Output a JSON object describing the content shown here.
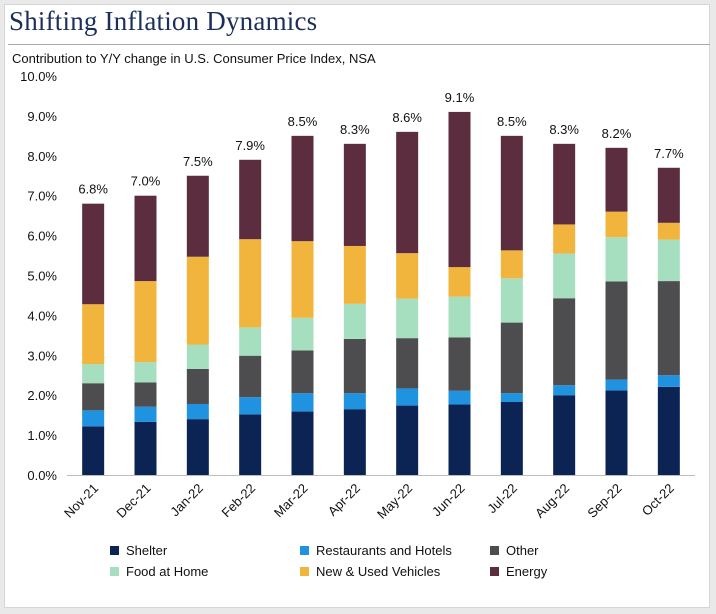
{
  "header": {
    "title": "Shifting Inflation Dynamics",
    "subtitle": "Contribution to Y/Y change in U.S. Consumer Price Index, NSA"
  },
  "chart_data": {
    "type": "bar",
    "stacked": true,
    "title": "Shifting Inflation Dynamics",
    "subtitle": "Contribution to Y/Y change in U.S. Consumer Price Index, NSA",
    "xlabel": "",
    "ylabel": "",
    "ylim": [
      0,
      10
    ],
    "yticks": [
      "0.0%",
      "1.0%",
      "2.0%",
      "3.0%",
      "4.0%",
      "5.0%",
      "6.0%",
      "7.0%",
      "8.0%",
      "9.0%",
      "10.0%"
    ],
    "grid": false,
    "legend_position": "bottom",
    "categories": [
      "Nov-21",
      "Dec-21",
      "Jan-22",
      "Feb-22",
      "Mar-22",
      "Apr-22",
      "May-22",
      "Jun-22",
      "Jul-22",
      "Aug-22",
      "Sep-22",
      "Oct-22"
    ],
    "totals": [
      6.8,
      7.0,
      7.5,
      7.9,
      8.5,
      8.3,
      8.6,
      9.1,
      8.5,
      8.3,
      8.2,
      7.7
    ],
    "total_labels": [
      "6.8%",
      "7.0%",
      "7.5%",
      "7.9%",
      "8.5%",
      "8.3%",
      "8.6%",
      "9.1%",
      "8.5%",
      "8.3%",
      "8.2%",
      "7.7%"
    ],
    "series": [
      {
        "name": "Shelter",
        "color": "#0c2454",
        "values": [
          1.22,
          1.33,
          1.4,
          1.52,
          1.59,
          1.65,
          1.74,
          1.77,
          1.83,
          2.0,
          2.12,
          2.21
        ]
      },
      {
        "name": "Restaurants and Hotels",
        "color": "#1f93df",
        "values": [
          0.4,
          0.38,
          0.38,
          0.43,
          0.46,
          0.4,
          0.43,
          0.34,
          0.22,
          0.25,
          0.27,
          0.29
        ]
      },
      {
        "name": "Other",
        "color": "#4d4d4f",
        "values": [
          0.68,
          0.61,
          0.88,
          1.04,
          1.07,
          1.36,
          1.26,
          1.34,
          1.77,
          2.18,
          2.46,
          2.36
        ]
      },
      {
        "name": "Food at Home",
        "color": "#a5dfc0",
        "values": [
          0.48,
          0.51,
          0.61,
          0.71,
          0.82,
          0.88,
          0.99,
          1.02,
          1.11,
          1.12,
          1.11,
          1.04
        ]
      },
      {
        "name": "New & Used Vehicles",
        "color": "#f1b43c",
        "values": [
          1.5,
          2.03,
          2.2,
          2.21,
          1.92,
          1.45,
          1.14,
          0.74,
          0.7,
          0.73,
          0.64,
          0.42
        ]
      },
      {
        "name": "Energy",
        "color": "#5c2d3f",
        "values": [
          2.52,
          2.14,
          2.03,
          1.99,
          2.64,
          2.56,
          3.04,
          3.89,
          2.87,
          2.02,
          1.6,
          1.38
        ]
      }
    ]
  }
}
